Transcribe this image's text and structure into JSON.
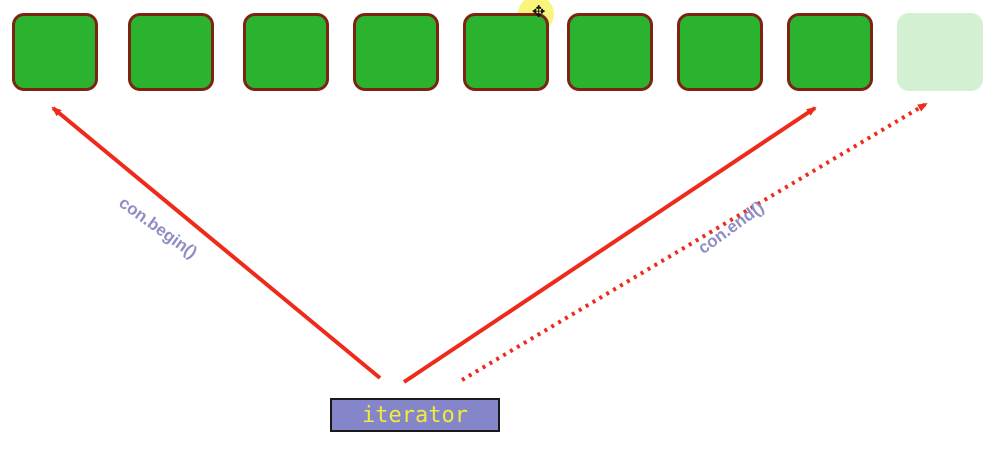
{
  "diagram": {
    "elements_count": 8,
    "end_placeholder": "past-the-end",
    "arrow_color": "#ee2a1a",
    "element_color": "#2bb32f",
    "element_border_color": "#7a2412",
    "ghost_color": "#d3f0d2",
    "labels": {
      "begin": "con.begin()",
      "end": "con.end()",
      "iterator": "iterator"
    },
    "cursor_icon": "move-cursor-icon"
  }
}
